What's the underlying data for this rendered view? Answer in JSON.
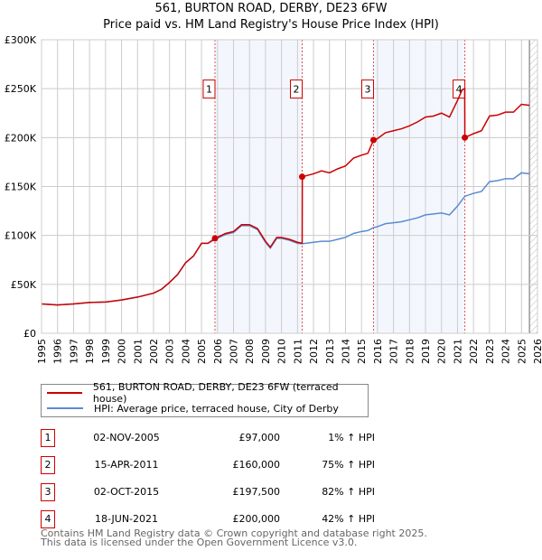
{
  "chart_data": {
    "type": "line",
    "title": "561, BURTON ROAD, DERBY, DE23 6FW",
    "subtitle": "Price paid vs. HM Land Registry's House Price Index (HPI)",
    "xlim": [
      1995,
      2026
    ],
    "ylim": [
      0,
      300000
    ],
    "x_ticks": [
      "1995",
      "1996",
      "1997",
      "1998",
      "1999",
      "2000",
      "2001",
      "2002",
      "2003",
      "2004",
      "2005",
      "2006",
      "2007",
      "2008",
      "2009",
      "2010",
      "2011",
      "2012",
      "2013",
      "2014",
      "2015",
      "2016",
      "2017",
      "2018",
      "2019",
      "2020",
      "2021",
      "2022",
      "2023",
      "2024",
      "2025",
      "2026"
    ],
    "y_ticks": [
      {
        "v": 0,
        "label": "£0"
      },
      {
        "v": 50000,
        "label": "£50K"
      },
      {
        "v": 100000,
        "label": "£100K"
      },
      {
        "v": 150000,
        "label": "£150K"
      },
      {
        "v": 200000,
        "label": "£200K"
      },
      {
        "v": 250000,
        "label": "£250K"
      },
      {
        "v": 300000,
        "label": "£300K"
      }
    ],
    "grid": true,
    "shaded_ranges": [
      [
        2005.84,
        2011.29
      ],
      [
        2015.75,
        2021.46
      ]
    ],
    "forecast_hatch_from": 2025.5,
    "series": [
      {
        "name": "561, BURTON ROAD, DERBY, DE23 6FW (terraced house)",
        "color": "#cc0000",
        "x": [
          1995,
          1996,
          1997,
          1998,
          1999,
          2000,
          2001,
          2002,
          2002.5,
          2003,
          2003.5,
          2004,
          2004.5,
          2005,
          2005.4,
          2005.84,
          2006.5,
          2007,
          2007.5,
          2008,
          2008.5,
          2009,
          2009.3,
          2009.7,
          2010,
          2010.5,
          2011,
          2011.29,
          2011.3,
          2012,
          2012.5,
          2013,
          2013.5,
          2014,
          2014.5,
          2015,
          2015.4,
          2015.75,
          2016,
          2016.5,
          2017,
          2017.5,
          2018,
          2018.5,
          2019,
          2019.5,
          2020,
          2020.5,
          2021,
          2021.3,
          2021.45,
          2021.46,
          2022,
          2022.5,
          2023,
          2023.5,
          2024,
          2024.5,
          2025,
          2025.5
        ],
        "y": [
          30000,
          29000,
          30000,
          31500,
          32000,
          34000,
          37000,
          41000,
          45000,
          52000,
          60000,
          72000,
          79000,
          92000,
          92000,
          97000,
          102000,
          104000,
          111000,
          111000,
          107000,
          94000,
          88000,
          98000,
          98000,
          96000,
          93000,
          92000,
          160000,
          163000,
          166000,
          164000,
          168000,
          171000,
          179000,
          182000,
          184000,
          197500,
          199000,
          205000,
          207000,
          209000,
          212000,
          216000,
          221000,
          222000,
          225000,
          221000,
          238000,
          249000,
          250000,
          200000,
          204000,
          207000,
          222000,
          223000,
          226000,
          226000,
          234000,
          233000
        ]
      },
      {
        "name": "HPI: Average price, terraced house, City of Derby",
        "color": "#5b8bd0",
        "x": [
          1995,
          1996,
          1997,
          1998,
          1999,
          2000,
          2001,
          2002,
          2002.5,
          2003,
          2003.5,
          2004,
          2004.5,
          2005,
          2005.4,
          2005.84,
          2006.5,
          2007,
          2007.5,
          2008,
          2008.5,
          2009,
          2009.3,
          2009.7,
          2010,
          2010.5,
          2011,
          2011.29,
          2012,
          2012.5,
          2013,
          2013.5,
          2014,
          2014.5,
          2015,
          2015.4,
          2015.75,
          2016,
          2016.5,
          2017,
          2017.5,
          2018,
          2018.5,
          2019,
          2019.5,
          2020,
          2020.5,
          2021,
          2021.46,
          2022,
          2022.5,
          2023,
          2023.5,
          2024,
          2024.5,
          2025,
          2025.5
        ],
        "y": [
          30000,
          29000,
          30000,
          31500,
          32000,
          34000,
          37000,
          41000,
          45000,
          52000,
          60000,
          72000,
          79000,
          92000,
          92000,
          96000,
          101000,
          103000,
          110000,
          110000,
          106000,
          93000,
          87000,
          97000,
          97000,
          95000,
          92000,
          91500,
          93000,
          94000,
          94000,
          96000,
          98000,
          102000,
          104000,
          105000,
          108000,
          109000,
          112000,
          113000,
          114000,
          116000,
          118000,
          121000,
          122000,
          123000,
          121000,
          130000,
          140000,
          143000,
          145000,
          155000,
          156000,
          158000,
          158000,
          164000,
          163000
        ]
      }
    ],
    "sales": [
      {
        "label": "1",
        "x": 2005.84,
        "y": 97000
      },
      {
        "label": "2",
        "x": 2011.29,
        "y": 160000
      },
      {
        "label": "3",
        "x": 2015.75,
        "y": 197500
      },
      {
        "label": "4",
        "x": 2021.46,
        "y": 200000
      }
    ]
  },
  "legend": {
    "red": "561, BURTON ROAD, DERBY, DE23 6FW (terraced house)",
    "blue": "HPI: Average price, terraced house, City of Derby"
  },
  "transactions": [
    {
      "num": "1",
      "date": "02-NOV-2005",
      "price": "£97,000",
      "hpi": "1% ↑ HPI"
    },
    {
      "num": "2",
      "date": "15-APR-2011",
      "price": "£160,000",
      "hpi": "75% ↑ HPI"
    },
    {
      "num": "3",
      "date": "02-OCT-2015",
      "price": "£197,500",
      "hpi": "82% ↑ HPI"
    },
    {
      "num": "4",
      "date": "18-JUN-2021",
      "price": "£200,000",
      "hpi": "42% ↑ HPI"
    }
  ],
  "footer": {
    "line1": "Contains HM Land Registry data © Crown copyright and database right 2025.",
    "line2": "This data is licensed under the Open Government Licence v3.0."
  }
}
